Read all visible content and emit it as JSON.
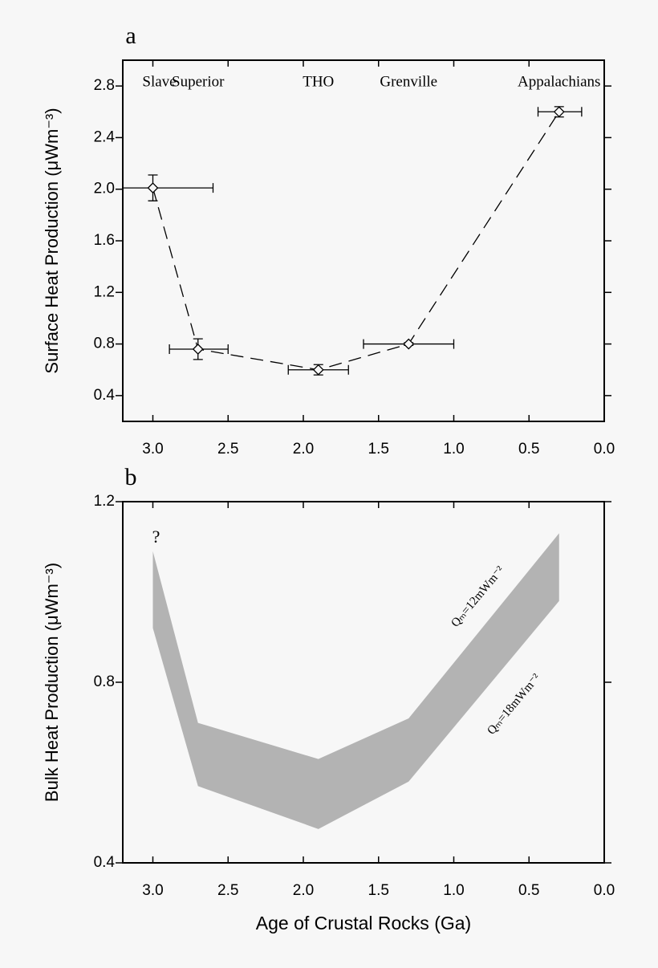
{
  "chart_data": [
    {
      "type": "errorbar",
      "panel_label": "a",
      "y_label": "Surface Heat Production (μWm⁻³)",
      "x": [
        3.0,
        2.7,
        1.9,
        1.3,
        0.3
      ],
      "values": [
        2.01,
        0.76,
        0.6,
        0.8,
        2.6
      ],
      "y_err": [
        0.1,
        0.08,
        0.04,
        0.01,
        0.04
      ],
      "x_low": [
        3.2,
        2.89,
        2.1,
        1.6,
        0.44
      ],
      "x_high": [
        2.6,
        2.5,
        1.7,
        1.0,
        0.15
      ],
      "point_labels": [
        "Slave",
        "Superior",
        "THO",
        "Grenville",
        "Appalachians"
      ],
      "xlim": [
        3.2,
        0.0
      ],
      "xticks": [
        {
          "value": 3,
          "label": "3.0"
        },
        2.5,
        {
          "value": 2,
          "label": "2.0"
        },
        1.5,
        {
          "value": 1,
          "label": "1.0"
        },
        0.5,
        {
          "value": 0,
          "label": "0.0"
        }
      ],
      "ylim": [
        0.2,
        3.0
      ],
      "yticks": [
        0.4,
        0.8,
        1.2,
        1.6,
        {
          "value": 2,
          "label": "2.0"
        },
        2.4,
        2.8
      ],
      "color": "#000000"
    },
    {
      "type": "band",
      "panel_label": "b",
      "y_label": "Bulk Heat Production (μWm⁻³)",
      "x_label": "Age of Crustal Rocks (Ga)",
      "x": [
        3.0,
        2.7,
        1.9,
        1.3,
        0.3
      ],
      "upper": [
        1.09,
        0.71,
        0.63,
        0.72,
        1.13
      ],
      "lower": [
        0.92,
        0.57,
        0.475,
        0.58,
        0.98
      ],
      "annotations": [
        "?",
        "Qₘ=12mWm⁻²",
        "Qₘ=18mWm⁻²"
      ],
      "xlim": [
        3.2,
        0.0
      ],
      "xticks": [
        {
          "value": 3,
          "label": "3.0"
        },
        2.5,
        {
          "value": 2,
          "label": "2.0"
        },
        1.5,
        {
          "value": 1,
          "label": "1.0"
        },
        0.5,
        {
          "value": 0,
          "label": "0.0"
        }
      ],
      "ylim": [
        0.4,
        1.2
      ],
      "yticks": [
        0.4,
        0.8,
        1.2
      ],
      "color": "#b3b3b3"
    }
  ]
}
